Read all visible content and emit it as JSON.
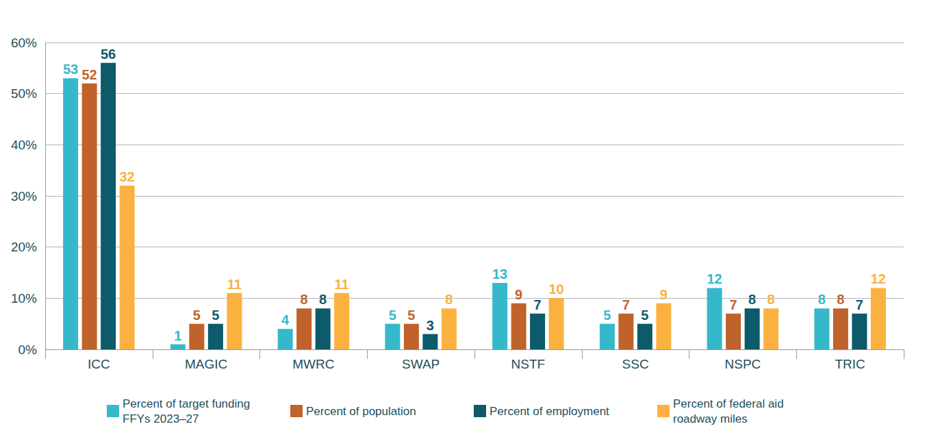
{
  "chart_data": {
    "type": "bar",
    "categories": [
      "ICC",
      "MAGIC",
      "MWRC",
      "SWAP",
      "NSTF",
      "SSC",
      "NSPC",
      "TRIC"
    ],
    "series": [
      {
        "name": "Percent of target funding FFYs 2023–27",
        "color": "#35b9ca",
        "values": [
          53,
          1,
          4,
          5,
          13,
          5,
          12,
          8
        ]
      },
      {
        "name": "Percent of population",
        "color": "#c0622b",
        "values": [
          52,
          5,
          8,
          5,
          9,
          7,
          7,
          8
        ]
      },
      {
        "name": "Percent of employment",
        "color": "#0c5a6a",
        "values": [
          56,
          5,
          8,
          3,
          7,
          5,
          8,
          7
        ]
      },
      {
        "name": "Percent of federal aid roadway miles",
        "color": "#fbb140",
        "values": [
          32,
          11,
          11,
          8,
          10,
          9,
          8,
          12
        ]
      }
    ],
    "ylim": [
      0,
      60
    ],
    "yticks": [
      {
        "value": 0,
        "label": "0%"
      },
      {
        "value": 10,
        "label": "10%"
      },
      {
        "value": 20,
        "label": "20%"
      },
      {
        "value": 30,
        "label": "30%"
      },
      {
        "value": 40,
        "label": "40%"
      },
      {
        "value": 50,
        "label": "50%"
      },
      {
        "value": 60,
        "label": "60%"
      }
    ],
    "grid": true,
    "legend": "bottom",
    "data_labels": true
  }
}
